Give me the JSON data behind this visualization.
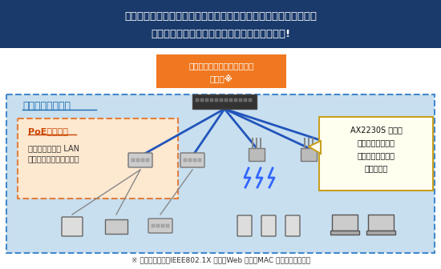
{
  "title_line1": "下位装置での認証設定が不要。島ハブ経由でも個別の端末に対する",
  "title_line2": "認証ができ、効率的なセキュリティ管理を実現!",
  "title_bg": "#1a3a6b",
  "title_color": "#ffffff",
  "orange_box_text1": "有線・無線の認証ポイントを",
  "orange_box_text2": "一元化※",
  "orange_box_color": "#f07820",
  "network_label": "ネットワーク認証",
  "network_box_color": "#c8dff0",
  "network_border_color": "#4488cc",
  "poe_box_text_title": "PoEデバイス",
  "poe_box_text1": "（島ハブ／無線 LAN",
  "poe_box_text2": "アクセスポイントなど）",
  "poe_box_color": "#fde8d0",
  "poe_border_color": "#e08040",
  "callout_line1": "AX2230S が認証",
  "callout_line2": "ポイントになれば",
  "callout_line3": "下位装置での認証",
  "callout_line4": "設定は不要",
  "callout_bg": "#fffff0",
  "callout_border": "#c8a020",
  "footnote": "※ トリプル認証（IEEE802.1X 認証、Web 認証、MAC 認証）による認証",
  "bg_color": "#ffffff",
  "blue_line_color": "#2255bb",
  "network_label_color": "#1a6ab0",
  "poe_title_color": "#cc4400"
}
